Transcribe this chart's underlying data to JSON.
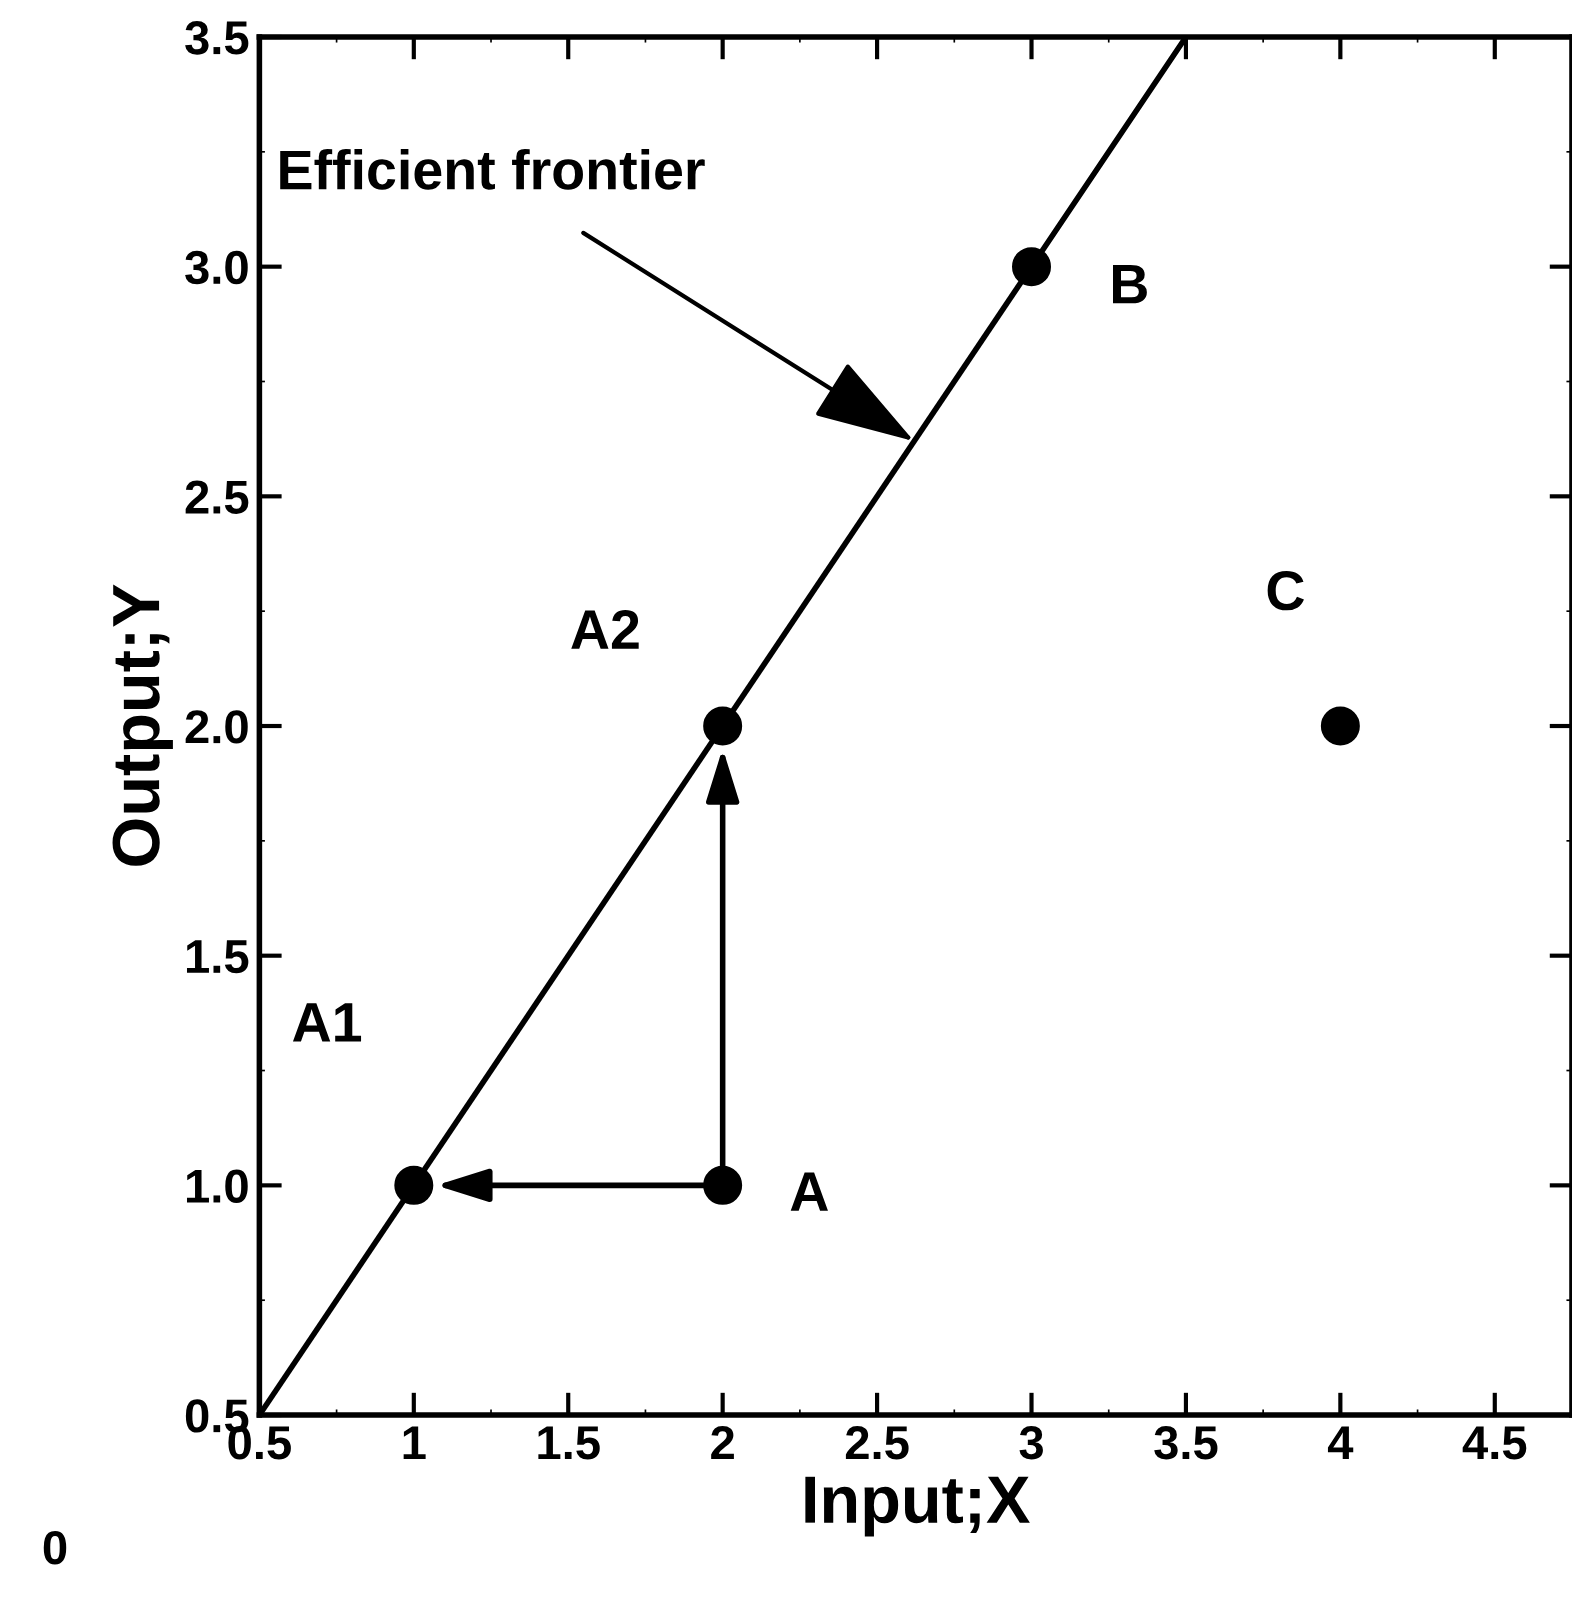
{
  "chart_data": {
    "type": "scatter",
    "xlabel": "Input;X",
    "ylabel": "Output;Y",
    "xlim": [
      0.5,
      4.75
    ],
    "ylim": [
      0.5,
      3.5
    ],
    "xticks": [
      0.5,
      1,
      1.5,
      2,
      2.5,
      3,
      3.5,
      4,
      4.5
    ],
    "yticks": [
      {
        "value": 0.5,
        "label": "0.5"
      },
      {
        "value": 1,
        "label": "1.0"
      },
      {
        "value": 1.5,
        "label": "1.5"
      },
      {
        "value": 2,
        "label": "2.0"
      },
      {
        "value": 2.5,
        "label": "2.5"
      },
      {
        "value": 3,
        "label": "3.0"
      },
      {
        "value": 3.5,
        "label": "3.5"
      }
    ],
    "grid": false,
    "marker": "circle",
    "series": [
      {
        "type": "line",
        "marker": "none",
        "color": "#000000",
        "x": [
          0.5,
          3.5
        ],
        "values": [
          0.5,
          3.5
        ]
      },
      {
        "color": "#000000",
        "x": [
          1,
          2,
          2,
          3,
          4
        ],
        "values": [
          1,
          2,
          1,
          3,
          2
        ]
      }
    ],
    "annotations": [
      {
        "text": "Efficient frontier",
        "x": 2.62,
        "y": 2.62
      },
      {
        "text": "A1",
        "x": 1,
        "y": 1
      },
      {
        "text": "A2",
        "x": 2,
        "y": 2
      },
      {
        "text": "A",
        "x": 2,
        "y": 1
      },
      {
        "text": "B",
        "x": 3,
        "y": 3
      },
      {
        "text": "C",
        "x": 4,
        "y": 2
      },
      "0"
    ]
  }
}
